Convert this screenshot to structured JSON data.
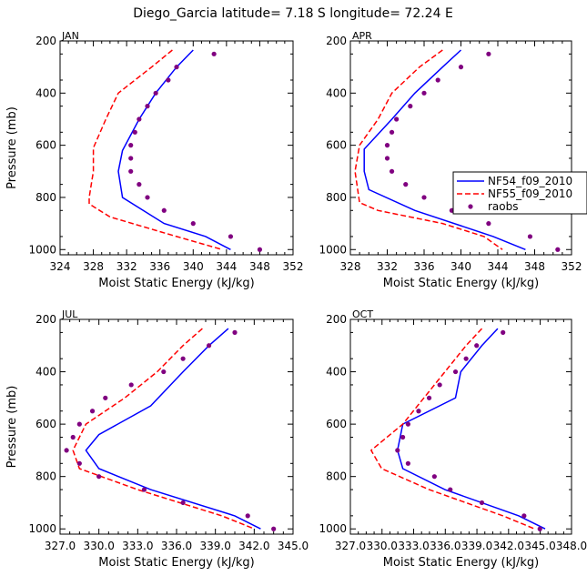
{
  "figure": {
    "title": "Diego_Garcia  latitude= 7.18 S longitude= 72.24 E"
  },
  "colors": {
    "series1": "#0000ff",
    "series2": "#ff0000",
    "raobs": "#800080",
    "axis": "#000000"
  },
  "chart_data": [
    {
      "type": "line",
      "title": "JAN",
      "xlabel": "Moist Static Energy (kJ/kg)",
      "ylabel": "Pressure (mb)",
      "xlim": [
        324,
        352
      ],
      "ylim": [
        200,
        1020
      ],
      "xticks": [
        324,
        328,
        332,
        336,
        340,
        344,
        348,
        352
      ],
      "xtick_labels": [
        "324",
        "328",
        "332",
        "336",
        "340",
        "344",
        "348",
        "352"
      ],
      "yticks": [
        200,
        400,
        600,
        800,
        1000
      ],
      "ytick_labels": [
        "200",
        "400",
        "600",
        "800",
        "1000"
      ],
      "series": [
        {
          "name": "NF54_f09_2010",
          "style": "solid",
          "pressure": [
            235,
            300,
            400,
            500,
            620,
            700,
            800,
            900,
            950,
            1000
          ],
          "values": [
            340.0,
            338.0,
            335.5,
            333.5,
            331.5,
            331.0,
            331.5,
            336.5,
            341.5,
            344.5
          ]
        },
        {
          "name": "NF55_f09_2010",
          "style": "dashed",
          "pressure": [
            235,
            300,
            400,
            500,
            610,
            700,
            800,
            825,
            875,
            950,
            1000
          ],
          "values": [
            337.5,
            335.0,
            331.0,
            329.5,
            328.0,
            328.0,
            327.5,
            327.5,
            330.0,
            338.0,
            343.5
          ]
        },
        {
          "name": "raobs",
          "style": "dots",
          "pressure": [
            250,
            300,
            350,
            400,
            450,
            500,
            550,
            600,
            650,
            700,
            750,
            800,
            850,
            900,
            950,
            1000
          ],
          "values": [
            342.5,
            338.0,
            337.0,
            335.5,
            334.5,
            333.5,
            333.0,
            332.5,
            332.5,
            332.5,
            333.5,
            334.5,
            336.5,
            340.0,
            344.5,
            348.0
          ]
        }
      ]
    },
    {
      "type": "line",
      "title": "APR",
      "xlabel": "Moist Static Energy (kJ/kg)",
      "ylabel": "Pressure (mb)",
      "xlim": [
        328,
        352
      ],
      "ylim": [
        200,
        1020
      ],
      "xticks": [
        328,
        332,
        336,
        340,
        344,
        348,
        352
      ],
      "xtick_labels": [
        "328",
        "332",
        "336",
        "340",
        "344",
        "348",
        "352"
      ],
      "yticks": [
        200,
        400,
        600,
        800,
        1000
      ],
      "ytick_labels": [
        "200",
        "400",
        "600",
        "800",
        "1000"
      ],
      "legend": {
        "placement": "right",
        "entries": [
          "NF54_f09_2010",
          "NF55_f09_2010",
          "raobs"
        ]
      },
      "series": [
        {
          "name": "NF54_f09_2010",
          "style": "solid",
          "pressure": [
            235,
            300,
            400,
            500,
            615,
            700,
            770,
            850,
            950,
            1000
          ],
          "values": [
            340.0,
            338.0,
            335.0,
            332.5,
            329.5,
            329.5,
            330.0,
            335.0,
            343.5,
            347.0
          ]
        },
        {
          "name": "NF55_f09_2010",
          "style": "dashed",
          "pressure": [
            235,
            300,
            400,
            500,
            600,
            700,
            820,
            850,
            900,
            950,
            1000
          ],
          "values": [
            338.0,
            335.5,
            332.5,
            331.0,
            329.0,
            328.5,
            329.0,
            331.0,
            338.0,
            342.5,
            344.5
          ]
        },
        {
          "name": "raobs",
          "style": "dots",
          "pressure": [
            250,
            300,
            350,
            400,
            450,
            500,
            550,
            600,
            650,
            700,
            750,
            800,
            850,
            900,
            950,
            1000
          ],
          "values": [
            343.0,
            340.0,
            337.5,
            336.0,
            334.5,
            333.0,
            332.5,
            332.0,
            332.0,
            332.5,
            334.0,
            336.0,
            339.0,
            343.0,
            347.5,
            350.5
          ]
        }
      ]
    },
    {
      "type": "line",
      "title": "JUL",
      "xlabel": "Moist Static Energy (kJ/kg)",
      "ylabel": "Pressure (mb)",
      "xlim": [
        327,
        345
      ],
      "ylim": [
        200,
        1020
      ],
      "xticks": [
        327,
        330,
        333,
        336,
        339,
        342,
        345
      ],
      "xtick_labels": [
        "327.0",
        "330.0",
        "333.0",
        "336.0",
        "339.0",
        "342.0",
        "345.0"
      ],
      "yticks": [
        200,
        400,
        600,
        800,
        1000
      ],
      "ytick_labels": [
        "200",
        "400",
        "600",
        "800",
        "1000"
      ],
      "series": [
        {
          "name": "NF54_f09_2010",
          "style": "solid",
          "pressure": [
            235,
            300,
            400,
            530,
            640,
            700,
            770,
            850,
            950,
            1000
          ],
          "values": [
            340.0,
            338.5,
            336.5,
            334.0,
            330.0,
            329.0,
            330.0,
            334.0,
            340.5,
            342.5
          ]
        },
        {
          "name": "NF55_f09_2010",
          "style": "dashed",
          "pressure": [
            235,
            300,
            400,
            500,
            600,
            700,
            770,
            850,
            950,
            1000
          ],
          "values": [
            338.0,
            336.5,
            334.5,
            332.0,
            329.0,
            328.0,
            328.5,
            333.0,
            339.5,
            342.0
          ]
        },
        {
          "name": "raobs",
          "style": "dots",
          "pressure": [
            250,
            300,
            350,
            400,
            450,
            500,
            550,
            600,
            650,
            700,
            750,
            800,
            850,
            900,
            950,
            1000
          ],
          "values": [
            340.5,
            338.5,
            336.5,
            335.0,
            332.5,
            330.5,
            329.5,
            328.5,
            328.0,
            327.5,
            328.5,
            330.0,
            333.5,
            336.5,
            341.5,
            343.5
          ]
        }
      ]
    },
    {
      "type": "line",
      "title": "OCT",
      "xlabel": "Moist Static Energy (kJ/kg)",
      "ylabel": "Pressure (mb)",
      "xlim": [
        327.03,
        348.0
      ],
      "ylim": [
        200,
        1020
      ],
      "xticks": [
        327.03,
        330.03,
        333.03,
        336.03,
        339.03,
        342.03,
        345.03,
        348.0
      ],
      "xtick_labels": [
        "327.0",
        "330.0",
        "333.0",
        "336.0",
        "339.0",
        "342.0",
        "345.0",
        "348.0"
      ],
      "yticks": [
        200,
        400,
        600,
        800,
        1000
      ],
      "ytick_labels": [
        "200",
        "400",
        "600",
        "800",
        "1000"
      ],
      "series": [
        {
          "name": "NF54_f09_2010",
          "style": "solid",
          "pressure": [
            235,
            300,
            400,
            500,
            600,
            700,
            770,
            850,
            950,
            1000
          ],
          "values": [
            341.0,
            339.5,
            337.5,
            337.0,
            332.0,
            331.5,
            332.0,
            336.0,
            343.0,
            345.5
          ]
        },
        {
          "name": "NF55_f09_2010",
          "style": "dashed",
          "pressure": [
            235,
            300,
            400,
            500,
            600,
            700,
            770,
            850,
            950,
            1000
          ],
          "values": [
            339.5,
            338.0,
            336.0,
            334.0,
            332.0,
            329.0,
            330.0,
            334.5,
            341.5,
            344.5
          ]
        },
        {
          "name": "raobs",
          "style": "dots",
          "pressure": [
            250,
            300,
            350,
            400,
            450,
            500,
            550,
            600,
            650,
            700,
            750,
            800,
            850,
            900,
            950,
            1000
          ],
          "values": [
            341.5,
            339.0,
            338.0,
            337.0,
            335.5,
            334.5,
            333.5,
            332.5,
            332.0,
            331.5,
            332.5,
            335.0,
            336.5,
            339.5,
            343.5,
            345.0
          ]
        }
      ]
    }
  ]
}
